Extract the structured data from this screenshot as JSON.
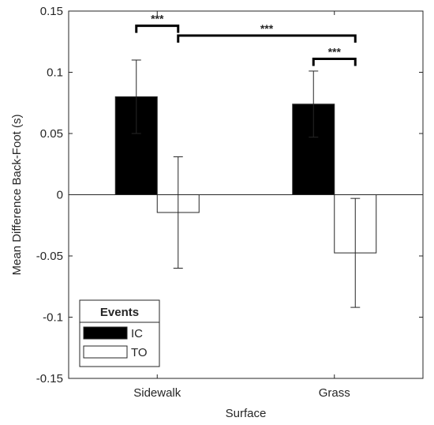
{
  "chart_data": {
    "type": "bar",
    "title": "",
    "xlabel": "Surface",
    "ylabel": "Mean Difference Back-Foot (s)",
    "categories": [
      "Sidewalk",
      "Grass"
    ],
    "series": [
      {
        "name": "IC",
        "values": [
          0.08,
          0.074
        ],
        "error": [
          0.03,
          0.027
        ],
        "color": "#000000"
      },
      {
        "name": "TO",
        "values": [
          -0.0145,
          -0.0475
        ],
        "error": [
          0.0455,
          0.0445
        ],
        "color": "#ffffff"
      }
    ],
    "ylim": [
      -0.15,
      0.15
    ],
    "yticks": [
      -0.15,
      -0.1,
      -0.05,
      0,
      0.05,
      0.1,
      0.15
    ],
    "ytick_labels": [
      "-0.15",
      "-0.1",
      "-0.05",
      "0",
      "0.05",
      "0.1",
      "0.15"
    ],
    "grid": false,
    "legend": {
      "title": "Events",
      "placement": "bottom-left"
    },
    "significance": [
      {
        "from": {
          "category": 0,
          "series": 0
        },
        "to": {
          "category": 0,
          "series": 1
        },
        "level": 0.138,
        "label": "***"
      },
      {
        "from": {
          "category": 0,
          "series": 1
        },
        "to": {
          "category": 1,
          "series": 1
        },
        "level": 0.13,
        "label": "***"
      },
      {
        "from": {
          "category": 1,
          "series": 0
        },
        "to": {
          "category": 1,
          "series": 1
        },
        "level": 0.111,
        "label": "***"
      }
    ]
  }
}
